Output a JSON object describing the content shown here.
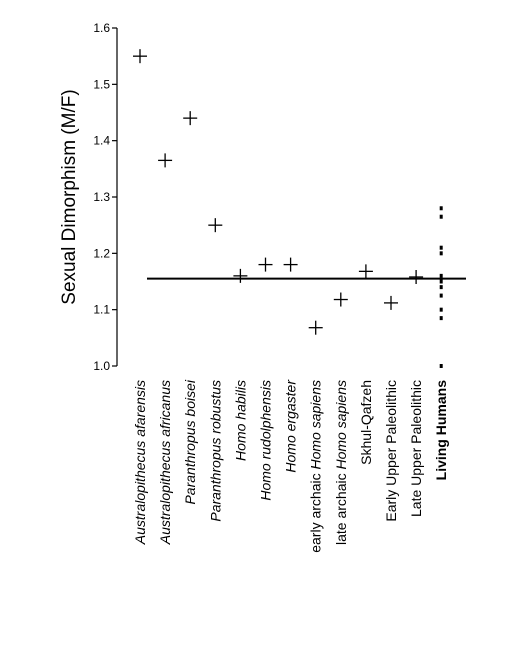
{
  "chart_data": {
    "type": "scatter",
    "title": "",
    "ylabel": "Sexual Dimorphism (M/F)",
    "xlabel": "",
    "ylim": [
      1.0,
      1.6
    ],
    "yticks": [
      "1.0",
      "1.1",
      "1.2",
      "1.3",
      "1.4",
      "1.5",
      "1.6"
    ],
    "grid": false,
    "reference_line": 1.155,
    "categories": [
      {
        "label": "Australopithecus afarensis",
        "parts": [
          {
            "text": "Australopithecus afarensis",
            "style": "italic"
          }
        ],
        "value": 1.55
      },
      {
        "label": "Australopithecus africanus",
        "parts": [
          {
            "text": "Australopithecus africanus",
            "style": "italic"
          }
        ],
        "value": 1.365
      },
      {
        "label": "Paranthropus boisei",
        "parts": [
          {
            "text": "Paranthropus boisei",
            "style": "italic"
          }
        ],
        "value": 1.44
      },
      {
        "label": "Paranthropus robustus",
        "parts": [
          {
            "text": "Paranthropus robustus",
            "style": "italic"
          }
        ],
        "value": 1.25
      },
      {
        "label": "Homo habilis",
        "parts": [
          {
            "text": "Homo habilis",
            "style": "italic"
          }
        ],
        "value": 1.16
      },
      {
        "label": "Homo rudolphensis",
        "parts": [
          {
            "text": "Homo rudolphensis",
            "style": "italic"
          }
        ],
        "value": 1.18
      },
      {
        "label": "Homo ergaster",
        "parts": [
          {
            "text": "Homo ergaster",
            "style": "italic"
          }
        ],
        "value": 1.18
      },
      {
        "label": "early archaic Homo sapiens",
        "parts": [
          {
            "text": "early archaic ",
            "style": "normal"
          },
          {
            "text": "Homo sapiens",
            "style": "italic"
          }
        ],
        "value": 1.068
      },
      {
        "label": "late archaic Homo sapiens",
        "parts": [
          {
            "text": "late archaic ",
            "style": "normal"
          },
          {
            "text": "Homo sapiens",
            "style": "italic"
          }
        ],
        "value": 1.118
      },
      {
        "label": "Skhul-Qafzeh",
        "parts": [
          {
            "text": "Skhul-Qafzeh",
            "style": "normal"
          }
        ],
        "value": 1.168
      },
      {
        "label": "Early Upper Paleolithic",
        "parts": [
          {
            "text": "Early Upper Paleolithic",
            "style": "normal"
          }
        ],
        "value": 1.112
      },
      {
        "label": "Late Upper Paleolithic",
        "parts": [
          {
            "text": "Late Upper Paleolithic",
            "style": "normal"
          }
        ],
        "value": 1.158
      },
      {
        "label": "Living Humans",
        "parts": [
          {
            "text": "Living Humans",
            "style": "bold"
          }
        ],
        "value": null
      }
    ],
    "living_humans_values": [
      1.0,
      1.085,
      1.1,
      1.125,
      1.14,
      1.15,
      1.16,
      1.2,
      1.21,
      1.265,
      1.28
    ]
  }
}
